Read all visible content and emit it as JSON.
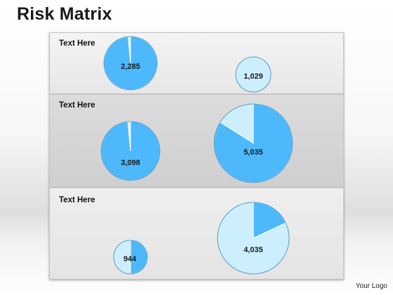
{
  "title": "Risk Matrix",
  "rows": [
    {
      "label": "Text Here"
    },
    {
      "label": "Text Here"
    },
    {
      "label": "Text Here"
    }
  ],
  "chart_data": {
    "type": "pie",
    "pies": [
      {
        "value": "2,285",
        "row": 1,
        "slice_fraction": 0.985
      },
      {
        "value": "1,029",
        "row": 1,
        "slice_fraction": 0.0
      },
      {
        "value": "3,098",
        "row": 2,
        "slice_fraction": 0.985
      },
      {
        "value": "5,035",
        "row": 2,
        "slice_fraction": 0.84
      },
      {
        "value": "944",
        "row": 3,
        "slice_fraction": 0.5
      },
      {
        "value": "4,035",
        "row": 3,
        "slice_fraction": 0.18
      }
    ]
  },
  "colors": {
    "primary": "#4db8fb",
    "secondary": "#cdeefd",
    "stroke": "#ffffff"
  },
  "footer": {
    "logo": "Your Logo"
  }
}
